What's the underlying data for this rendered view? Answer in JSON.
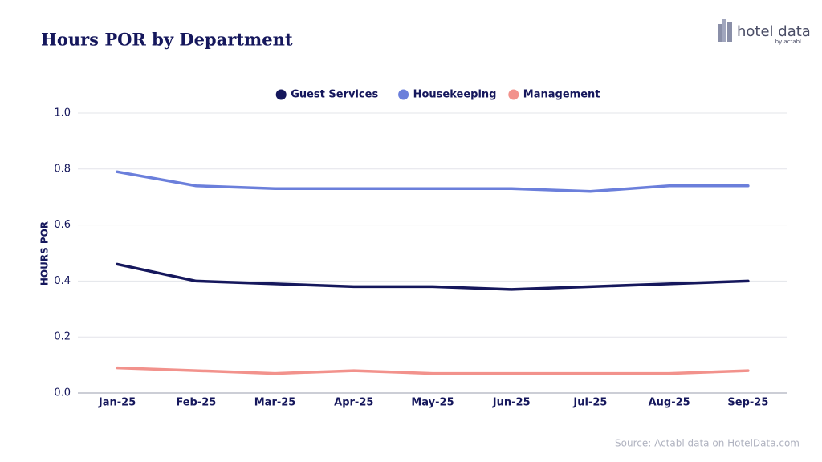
{
  "chart_data": {
    "type": "line",
    "title": "Hours POR by Department",
    "y_label": "HOURS POR",
    "categories": [
      "Jan-25",
      "Feb-25",
      "Mar-25",
      "Apr-25",
      "May-25",
      "Jun-25",
      "Jul-25",
      "Aug-25",
      "Sep-25"
    ],
    "series": [
      {
        "name": "Guest Services",
        "color": "#15175c",
        "values": [
          0.46,
          0.4,
          0.39,
          0.38,
          0.38,
          0.37,
          0.38,
          0.39,
          0.4
        ]
      },
      {
        "name": "Housekeeping",
        "color": "#6b7fdb",
        "values": [
          0.79,
          0.74,
          0.73,
          0.73,
          0.73,
          0.73,
          0.72,
          0.74,
          0.74
        ]
      },
      {
        "name": "Management",
        "color": "#f2928c",
        "values": [
          0.09,
          0.08,
          0.07,
          0.08,
          0.07,
          0.07,
          0.07,
          0.07,
          0.08
        ]
      }
    ],
    "ylim": [
      0,
      1
    ],
    "yticks": [
      {
        "value": 0,
        "label": "0.0"
      },
      0.2,
      0.4,
      0.6,
      0.8,
      {
        "value": 1,
        "label": "1.0"
      }
    ],
    "grid": true,
    "legend": "top",
    "source": "Source: Actabl data on HotelData.com"
  },
  "logo": {
    "name": "hotel data",
    "by": "by actabl"
  }
}
